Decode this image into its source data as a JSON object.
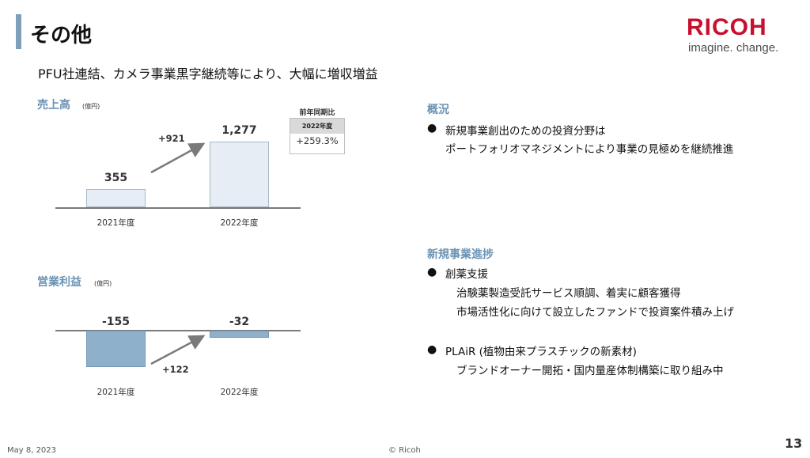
{
  "header": {
    "title": "その他",
    "logo": {
      "word": "RICOH",
      "tagline": "imagine. change."
    }
  },
  "subtitle": "PFU社連結、カメラ事業黒字継続等により、大幅に増収増益",
  "sales": {
    "label": "売上高",
    "unit": "(億円)",
    "delta": "+921",
    "yoy": {
      "title": "前年同期比",
      "period": "2022年度",
      "value": "+259.3%"
    }
  },
  "operating_profit": {
    "label": "営業利益",
    "unit": "(億円)",
    "delta": "+122"
  },
  "chart_data": [
    {
      "type": "bar",
      "categories": [
        "2021年度",
        "2022年度"
      ],
      "values": [
        355,
        1277
      ],
      "title": "売上高",
      "ylabel": "(億円)",
      "value_labels": [
        "355",
        "1,277"
      ],
      "colors": [
        "#e7edf4",
        "#e7edf4"
      ]
    },
    {
      "type": "bar",
      "categories": [
        "2021年度",
        "2022年度"
      ],
      "values": [
        -155,
        -32
      ],
      "title": "営業利益",
      "ylabel": "(億円)",
      "value_labels": [
        "-155",
        "-32"
      ],
      "colors": [
        "#8fb0ca",
        "#8fb0ca"
      ]
    }
  ],
  "overview": {
    "heading": "概況",
    "bullets": [
      {
        "lines": [
          "新規事業創出のための投資分野は",
          "ポートフォリオマネジメントにより事業の見極めを継続推進"
        ]
      }
    ]
  },
  "progress": {
    "heading": "新規事業進捗",
    "bullets": [
      {
        "title": "創薬支援",
        "lines": [
          "治験薬製造受託サービス順調、着実に顧客獲得",
          "市場活性化に向けて設立したファンドで投資案件積み上げ"
        ]
      },
      {
        "title": "PLAiR (植物由来プラスチックの新素材)",
        "lines": [
          "ブランドオーナー開拓・国内量産体制構築に取り組み中"
        ]
      }
    ]
  },
  "footer": {
    "date": "May 8, 2023",
    "copyright": "© Ricoh",
    "page": "13"
  },
  "colors": {
    "accent": "#6b93b4",
    "logo": "#c8102e",
    "bar_light": "#e7edf4",
    "bar_dark": "#8fb0ca"
  }
}
